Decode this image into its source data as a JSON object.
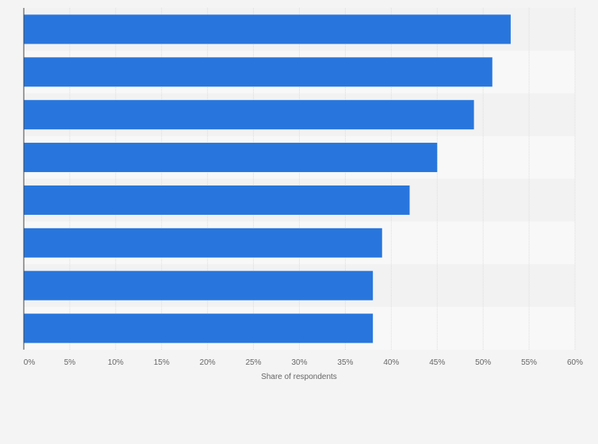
{
  "chart_data": {
    "type": "bar",
    "orientation": "horizontal",
    "categories": [
      "",
      "",
      "",
      "",
      "",
      "",
      "",
      ""
    ],
    "values": [
      53,
      51,
      49,
      45,
      42,
      39,
      38,
      38
    ],
    "value_unit": "%",
    "xlabel": "Share of respondents",
    "ylabel": "",
    "xlim": [
      0,
      60
    ],
    "xticks": [
      "0%",
      "5%",
      "10%",
      "15%",
      "20%",
      "25%",
      "30%",
      "35%",
      "40%",
      "45%",
      "50%",
      "55%",
      "60%"
    ],
    "grid": "vertical",
    "legend": "none",
    "colors": {
      "bar": "#2876dd",
      "page_background": "#f4f4f4",
      "band_light": "#f8f8f8",
      "band_dark": "#f2f2f2",
      "gridline": "#dddddd",
      "axis": "#444444",
      "text": "#666666"
    }
  }
}
